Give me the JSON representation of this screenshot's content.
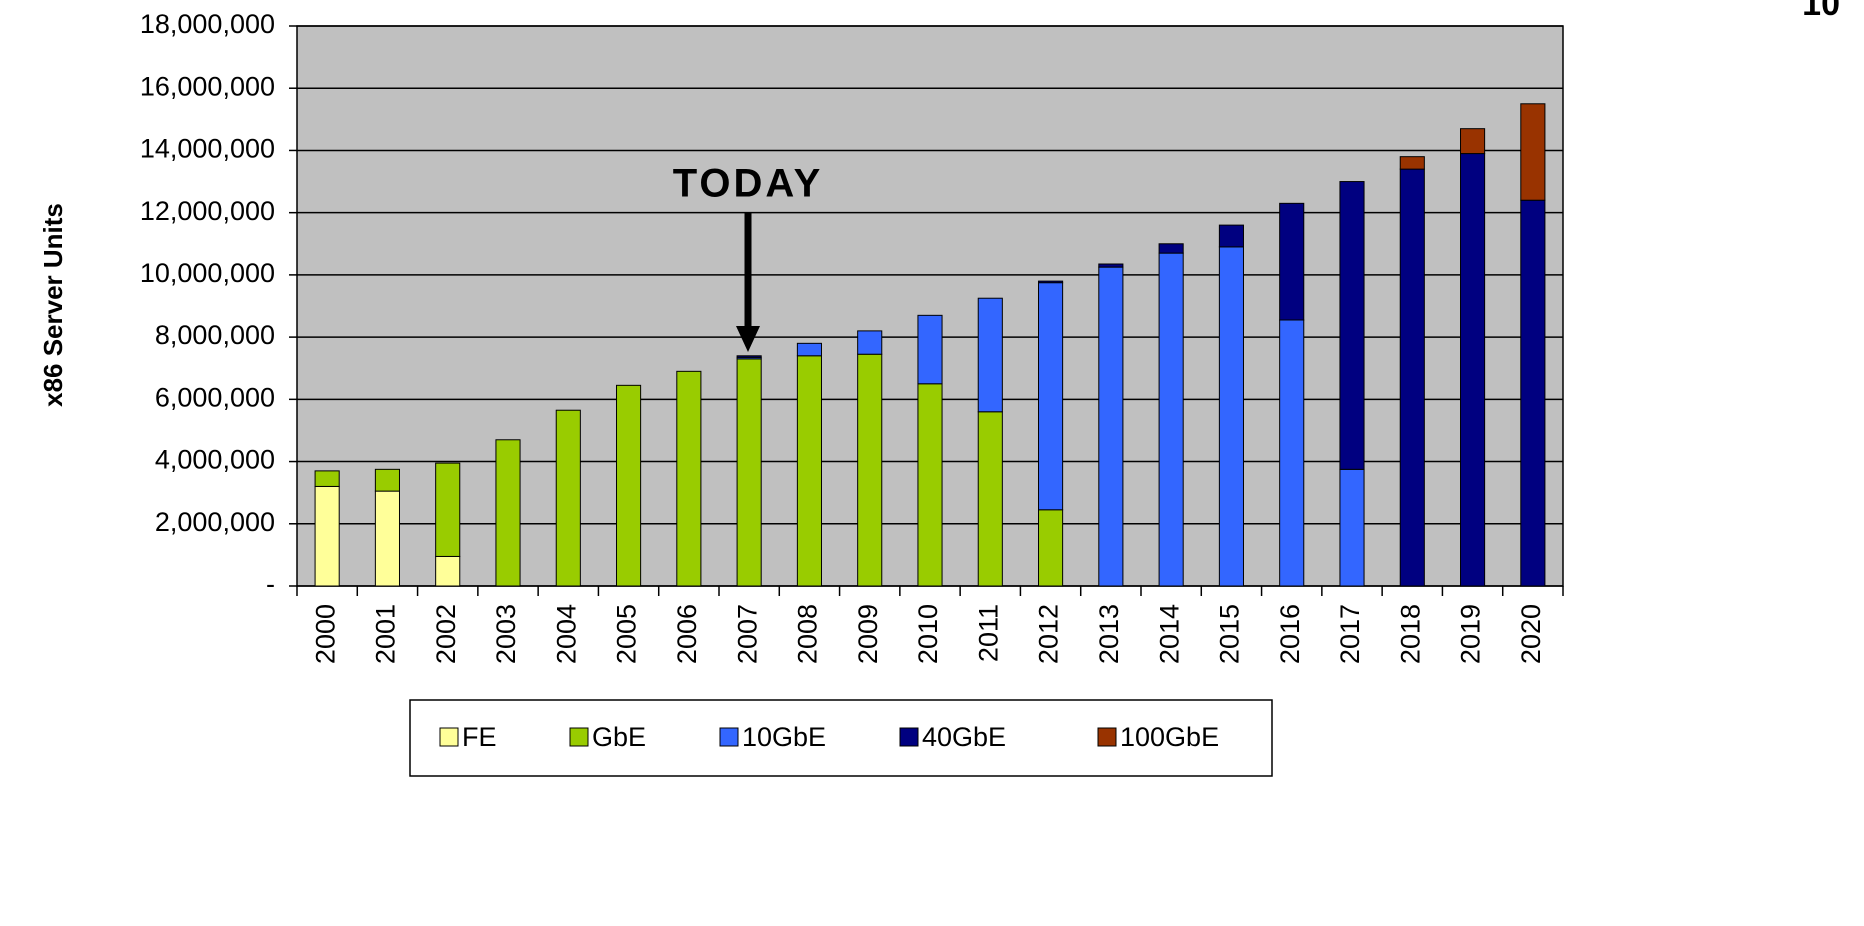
{
  "chart_data": {
    "type": "stacked_bar",
    "page_number": "10",
    "y_label": "x86 Server Units",
    "annotation": "TODAY",
    "categories": [
      "2000",
      "2001",
      "2002",
      "2003",
      "2004",
      "2005",
      "2006",
      "2007",
      "2008",
      "2009",
      "2010",
      "2011",
      "2012",
      "2013",
      "2014",
      "2015",
      "2016",
      "2017",
      "2018",
      "2019",
      "2020"
    ],
    "series": [
      {
        "name": "FE",
        "color": "#ffff99",
        "values": [
          3200000,
          3050000,
          950000,
          0,
          0,
          0,
          0,
          0,
          0,
          0,
          0,
          0,
          0,
          0,
          0,
          0,
          0,
          0,
          0,
          0,
          0
        ]
      },
      {
        "name": "GbE",
        "color": "#99cc00",
        "values": [
          500000,
          700000,
          3000000,
          4700000,
          5650000,
          6450000,
          6900000,
          7300000,
          7400000,
          7450000,
          6500000,
          5600000,
          2450000,
          0,
          0,
          0,
          0,
          0,
          0,
          0,
          0
        ]
      },
      {
        "name": "10GbE",
        "color": "#3366ff",
        "values": [
          0,
          0,
          0,
          0,
          0,
          0,
          0,
          50000,
          400000,
          750000,
          2200000,
          3650000,
          7300000,
          10250000,
          10700000,
          10900000,
          8550000,
          3750000,
          0,
          0,
          0
        ]
      },
      {
        "name": "40GbE",
        "color": "#000080",
        "values": [
          0,
          0,
          0,
          0,
          0,
          0,
          0,
          50000,
          0,
          0,
          0,
          0,
          50000,
          100000,
          300000,
          700000,
          3750000,
          9250000,
          13400000,
          13900000,
          12400000
        ]
      },
      {
        "name": "100GbE",
        "color": "#993300",
        "values": [
          0,
          0,
          0,
          0,
          0,
          0,
          0,
          0,
          0,
          0,
          0,
          0,
          0,
          0,
          0,
          0,
          0,
          0,
          400000,
          800000,
          3100000
        ]
      }
    ],
    "ylim": [
      0,
      18000000
    ],
    "yticks": [
      {
        "value": 0,
        "label": "-"
      },
      {
        "value": 2000000,
        "label": "2,000,000"
      },
      {
        "value": 4000000,
        "label": "4,000,000"
      },
      {
        "value": 6000000,
        "label": "6,000,000"
      },
      {
        "value": 8000000,
        "label": "8,000,000"
      },
      {
        "value": 10000000,
        "label": "10,000,000"
      },
      {
        "value": 12000000,
        "label": "12,000,000"
      },
      {
        "value": 14000000,
        "label": "14,000,000"
      },
      {
        "value": 16000000,
        "label": "16,000,000"
      },
      {
        "value": 18000000,
        "label": "18,000,000"
      }
    ],
    "grid": true,
    "legend": "bottom",
    "plot_background": "#c0c0c0"
  }
}
